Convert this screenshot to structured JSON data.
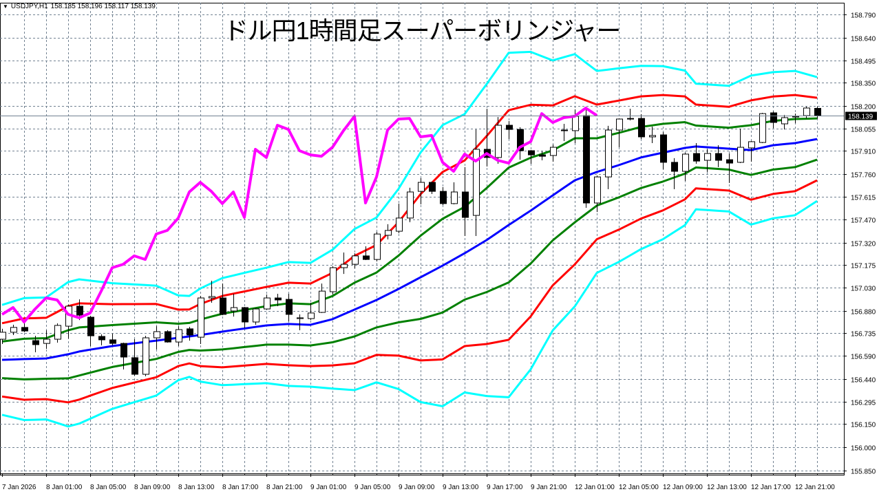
{
  "header": {
    "symbol": "USDJPY,H1",
    "ohlc": "158.185 158.196 158.117 158.139"
  },
  "chart_data": {
    "type": "candlestick",
    "title": "ドル円1時間足スーパーボリンジャー",
    "symbol": "USDJPY",
    "timeframe": "H1",
    "current_price": "158.139",
    "ylim": [
      155.85,
      158.79
    ],
    "yticks": [
      "158.790",
      "158.640",
      "158.495",
      "158.350",
      "158.200",
      "158.055",
      "157.910",
      "157.760",
      "157.615",
      "157.470",
      "157.320",
      "157.175",
      "157.030",
      "156.880",
      "156.735",
      "156.590",
      "156.440",
      "156.295",
      "156.150",
      "156.000",
      "155.850"
    ],
    "xticks": [
      {
        "bar": 0,
        "label": "7 Jan 2026"
      },
      {
        "bar": 4,
        "label": "8 Jan 01:00"
      },
      {
        "bar": 8,
        "label": "8 Jan 05:00"
      },
      {
        "bar": 12,
        "label": "8 Jan 09:00"
      },
      {
        "bar": 16,
        "label": "8 Jan 13:00"
      },
      {
        "bar": 20,
        "label": "8 Jan 17:00"
      },
      {
        "bar": 24,
        "label": "8 Jan 21:00"
      },
      {
        "bar": 28,
        "label": "9 Jan 01:00"
      },
      {
        "bar": 32,
        "label": "9 Jan 05:00"
      },
      {
        "bar": 36,
        "label": "9 Jan 09:00"
      },
      {
        "bar": 40,
        "label": "9 Jan 13:00"
      },
      {
        "bar": 44,
        "label": "9 Jan 17:00"
      },
      {
        "bar": 48,
        "label": "9 Jan 21:00"
      },
      {
        "bar": 52,
        "label": "12 Jan 01:00"
      },
      {
        "bar": 56,
        "label": "12 Jan 05:00"
      },
      {
        "bar": 60,
        "label": "12 Jan 09:00"
      },
      {
        "bar": 64,
        "label": "12 Jan 13:00"
      },
      {
        "bar": 68,
        "label": "12 Jan 17:00"
      },
      {
        "bar": 72,
        "label": "12 Jan 21:00"
      }
    ],
    "ohlc": [
      [
        156.697,
        156.764,
        156.666,
        156.742
      ],
      [
        156.742,
        156.79,
        156.724,
        156.773
      ],
      [
        156.773,
        156.799,
        156.742,
        156.75
      ],
      [
        156.688,
        156.719,
        156.613,
        156.662
      ],
      [
        156.67,
        156.755,
        156.635,
        156.697
      ],
      [
        156.697,
        156.799,
        156.675,
        156.786
      ],
      [
        156.781,
        156.919,
        156.701,
        156.91
      ],
      [
        156.91,
        156.954,
        156.821,
        156.852
      ],
      [
        156.839,
        156.848,
        156.653,
        156.719
      ],
      [
        156.715,
        156.728,
        156.657,
        156.693
      ],
      [
        156.693,
        156.733,
        156.657,
        156.67
      ],
      [
        156.67,
        156.675,
        156.502,
        156.582
      ],
      [
        156.578,
        156.697,
        156.462,
        156.471
      ],
      [
        156.471,
        156.719,
        156.458,
        156.706
      ],
      [
        156.706,
        156.781,
        156.631,
        156.746
      ],
      [
        156.746,
        156.755,
        156.675,
        156.679
      ],
      [
        156.679,
        156.781,
        156.653,
        156.759
      ],
      [
        156.764,
        156.777,
        156.688,
        156.724
      ],
      [
        156.71,
        156.976,
        156.666,
        156.963
      ],
      [
        156.963,
        157.074,
        156.932,
        156.972
      ],
      [
        156.963,
        157.056,
        156.852,
        156.857
      ],
      [
        156.879,
        156.99,
        156.843,
        156.901
      ],
      [
        156.901,
        156.905,
        156.768,
        156.808
      ],
      [
        156.808,
        156.897,
        156.79,
        156.892
      ],
      [
        156.892,
        156.985,
        156.888,
        156.963
      ],
      [
        156.963,
        156.99,
        156.91,
        156.95
      ],
      [
        156.954,
        156.99,
        156.812,
        156.857
      ],
      [
        156.83,
        156.857,
        156.755,
        156.835
      ],
      [
        156.83,
        156.932,
        156.821,
        156.866
      ],
      [
        156.87,
        157.056,
        156.866,
        157.007
      ],
      [
        157.003,
        157.167,
        156.985,
        157.158
      ],
      [
        157.158,
        157.256,
        157.118,
        157.18
      ],
      [
        157.18,
        157.251,
        157.154,
        157.234
      ],
      [
        157.234,
        157.296,
        157.207,
        157.211
      ],
      [
        157.211,
        157.389,
        157.198,
        157.375
      ],
      [
        157.367,
        157.438,
        157.34,
        157.398
      ],
      [
        157.393,
        157.571,
        157.38,
        157.478
      ],
      [
        157.478,
        157.673,
        157.451,
        157.646
      ],
      [
        157.65,
        157.735,
        157.566,
        157.708
      ],
      [
        157.708,
        157.713,
        157.633,
        157.65
      ],
      [
        157.65,
        157.677,
        157.562,
        157.571
      ],
      [
        157.571,
        157.708,
        157.566,
        157.646
      ],
      [
        157.646,
        157.806,
        157.362,
        157.482
      ],
      [
        157.495,
        158.049,
        157.362,
        157.921
      ],
      [
        157.921,
        158.182,
        157.81,
        157.868
      ],
      [
        157.868,
        158.129,
        157.828,
        158.076
      ],
      [
        158.076,
        158.103,
        157.987,
        158.049
      ],
      [
        158.049,
        158.063,
        157.854,
        157.912
      ],
      [
        157.912,
        157.916,
        157.828,
        157.885
      ],
      [
        157.885,
        157.908,
        157.85,
        157.876
      ],
      [
        157.881,
        157.952,
        157.841,
        157.934
      ],
      [
        158.045,
        158.085,
        157.974,
        158.041
      ],
      [
        158.041,
        158.178,
        157.961,
        158.134
      ],
      [
        158.138,
        158.196,
        157.544,
        157.575
      ],
      [
        157.575,
        157.752,
        157.517,
        157.743
      ],
      [
        157.743,
        158.072,
        157.664,
        158.045
      ],
      [
        158.045,
        158.12,
        157.934,
        158.116
      ],
      [
        158.116,
        158.182,
        158.107,
        158.12
      ],
      [
        158.12,
        158.147,
        157.987,
        158.001
      ],
      [
        158.001,
        158.067,
        157.961,
        158.01
      ],
      [
        158.014,
        158.032,
        157.792,
        157.837
      ],
      [
        157.837,
        157.864,
        157.664,
        157.779
      ],
      [
        157.779,
        157.899,
        157.717,
        157.89
      ],
      [
        157.894,
        157.961,
        157.828,
        157.845
      ],
      [
        157.85,
        157.921,
        157.775,
        157.894
      ],
      [
        157.894,
        157.947,
        157.806,
        157.85
      ],
      [
        157.854,
        157.894,
        157.704,
        157.832
      ],
      [
        157.837,
        158.054,
        157.832,
        157.934
      ],
      [
        157.93,
        157.974,
        157.841,
        157.97
      ],
      [
        157.965,
        158.156,
        157.961,
        158.151
      ],
      [
        158.156,
        158.165,
        158.058,
        158.094
      ],
      [
        158.085,
        158.142,
        158.049,
        158.125
      ],
      [
        158.129,
        158.151,
        158.089,
        158.134
      ],
      [
        158.138,
        158.196,
        158.12,
        158.187
      ],
      [
        158.185,
        158.196,
        158.117,
        158.139
      ]
    ],
    "bollinger_keypoints": [
      {
        "bar": 0,
        "mid": 156.564,
        "sigma": 0.118
      },
      {
        "bar": 2,
        "mid": 156.569,
        "sigma": 0.131
      },
      {
        "bar": 4,
        "mid": 156.573,
        "sigma": 0.131
      },
      {
        "bar": 6,
        "mid": 156.6,
        "sigma": 0.155
      },
      {
        "bar": 7,
        "mid": 156.618,
        "sigma": 0.155
      },
      {
        "bar": 10,
        "mid": 156.653,
        "sigma": 0.135
      },
      {
        "bar": 14,
        "mid": 156.688,
        "sigma": 0.118
      },
      {
        "bar": 16,
        "mid": 156.706,
        "sigma": 0.091
      },
      {
        "bar": 17,
        "mid": 156.715,
        "sigma": 0.087
      },
      {
        "bar": 18,
        "mid": 156.724,
        "sigma": 0.1
      },
      {
        "bar": 20,
        "mid": 156.746,
        "sigma": 0.115
      },
      {
        "bar": 24,
        "mid": 156.786,
        "sigma": 0.124
      },
      {
        "bar": 26,
        "mid": 156.795,
        "sigma": 0.133
      },
      {
        "bar": 28,
        "mid": 156.79,
        "sigma": 0.133
      },
      {
        "bar": 30,
        "mid": 156.826,
        "sigma": 0.149
      },
      {
        "bar": 32,
        "mid": 156.888,
        "sigma": 0.173
      },
      {
        "bar": 34,
        "mid": 156.95,
        "sigma": 0.177
      },
      {
        "bar": 36,
        "mid": 157.021,
        "sigma": 0.215
      },
      {
        "bar": 38,
        "mid": 157.096,
        "sigma": 0.268
      },
      {
        "bar": 40,
        "mid": 157.171,
        "sigma": 0.302
      },
      {
        "bar": 42,
        "mid": 157.251,
        "sigma": 0.299
      },
      {
        "bar": 44,
        "mid": 157.336,
        "sigma": 0.335
      },
      {
        "bar": 46,
        "mid": 157.433,
        "sigma": 0.37
      },
      {
        "bar": 48,
        "mid": 157.526,
        "sigma": 0.341
      },
      {
        "bar": 50,
        "mid": 157.624,
        "sigma": 0.29
      },
      {
        "bar": 52,
        "mid": 157.721,
        "sigma": 0.271
      },
      {
        "bar": 54,
        "mid": 157.775,
        "sigma": 0.217
      },
      {
        "bar": 56,
        "mid": 157.819,
        "sigma": 0.208
      },
      {
        "bar": 58,
        "mid": 157.868,
        "sigma": 0.197
      },
      {
        "bar": 60,
        "mid": 157.899,
        "sigma": 0.186
      },
      {
        "bar": 62,
        "mid": 157.93,
        "sigma": 0.166
      },
      {
        "bar": 63,
        "mid": 157.939,
        "sigma": 0.135
      },
      {
        "bar": 66,
        "mid": 157.925,
        "sigma": 0.135
      },
      {
        "bar": 68,
        "mid": 157.916,
        "sigma": 0.16
      },
      {
        "bar": 70,
        "mid": 157.947,
        "sigma": 0.157
      },
      {
        "bar": 72,
        "mid": 157.961,
        "sigma": 0.155
      },
      {
        "bar": 74,
        "mid": 157.987,
        "sigma": 0.133
      }
    ],
    "chikou_shift": 20,
    "colors": {
      "mid": "#0000ff",
      "sigma1": "#008000",
      "sigma2": "#ff0000",
      "sigma3": "#00ffff",
      "chikou": "#ff00ff",
      "grid": "#708090"
    }
  }
}
